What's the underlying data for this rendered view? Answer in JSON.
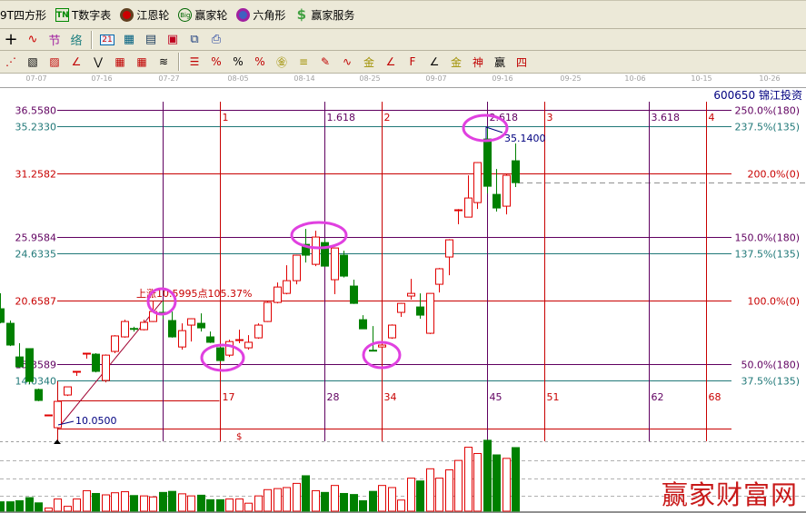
{
  "toolbar1": [
    {
      "label": "9T四方形",
      "icon": "none"
    },
    {
      "label": "T数字表",
      "icon": "tn-icon"
    },
    {
      "label": "江恩轮",
      "icon": "gann-wheel-icon"
    },
    {
      "label": "赢家轮",
      "icon": "big-wheel-icon"
    },
    {
      "label": "六角形",
      "icon": "hexagon-icon"
    },
    {
      "label": "赢家服务",
      "icon": "dollar-icon"
    }
  ],
  "toolbar2": [
    "crosshair-icon",
    "wave-icon",
    "jie-icon",
    "luo-icon",
    "calendar-icon",
    "calculator-icon",
    "notes-icon",
    "save-icon",
    "network-icon",
    "printer-icon"
  ],
  "toolbar2_calendar_text": "21",
  "toolbar3": [
    "fan-lines-icon",
    "gann-box-icon",
    "gann-square-icon",
    "angle-icon",
    "zigzag-icon",
    "grid-icon",
    "grid-bold-icon",
    "parallel-lines-icon",
    "fib-levels-icon",
    "percent-trend-icon",
    "percent-icon",
    "percent-lines-icon",
    "gold-circle-icon",
    "gold-lines-icon",
    "pencil-icon",
    "sine-wave-icon",
    "gold-icon",
    "angle-lines-icon",
    "f-angle-icon",
    "angle-lines-2-icon",
    "gold-angle-icon",
    "shen-angle-icon",
    "ying-angle-icon",
    "si-angle-icon"
  ],
  "dates": [
    "07-07",
    "07-16",
    "07-27",
    "08-05",
    "08-14",
    "08-25",
    "09-07",
    "09-16",
    "09-25",
    "10-06",
    "10-15",
    "10-26"
  ],
  "stock": "600650 锦江投资",
  "colors": {
    "red": "#c80000",
    "purple": "#600060",
    "teal": "#207878",
    "up": "#e00000",
    "down": "#008000",
    "ellipse": "#e040e0",
    "blue": "#000080"
  },
  "chart_data": {
    "type": "candlestick",
    "fib_price_levels": [
      {
        "price": "36.5580",
        "label": "250.0%(180)",
        "color": "purple"
      },
      {
        "price": "35.2330",
        "label": "237.5%(135)",
        "color": "teal"
      },
      {
        "price": "31.2582",
        "label": "200.0%(0)",
        "color": "red"
      },
      {
        "price": "25.9584",
        "label": "150.0%(180)",
        "color": "purple"
      },
      {
        "price": "24.6335",
        "label": "137.5%(135)",
        "color": "teal"
      },
      {
        "price": "20.6587",
        "label": "100.0%(0)",
        "color": "red"
      },
      {
        "price": "15.3589",
        "label": "50.0%(180)",
        "color": "purple"
      },
      {
        "price": "14.0340",
        "label": "37.5%(135)",
        "color": "teal"
      }
    ],
    "fib_time_lines": [
      {
        "bars": 11,
        "top": "",
        "bottom": "",
        "color": "purple"
      },
      {
        "bars": 17,
        "top": "1",
        "bottom": "17",
        "color": "red"
      },
      {
        "bars": 28,
        "top": "1.618",
        "bottom": "28",
        "color": "purple"
      },
      {
        "bars": 34,
        "top": "2",
        "bottom": "34",
        "color": "red"
      },
      {
        "bars": 45,
        "top": "2.618",
        "bottom": "45",
        "color": "purple"
      },
      {
        "bars": 51,
        "top": "3",
        "bottom": "51",
        "color": "red"
      },
      {
        "bars": 62,
        "top": "3.618",
        "bottom": "62",
        "color": "purple"
      },
      {
        "bars": 68,
        "top": "4",
        "bottom": "68",
        "color": "red"
      }
    ],
    "low_label": "10.0500",
    "high_label": "35.1400",
    "rise_label": "上涨10.5995点105.37%",
    "dollar_marker": "$",
    "low_index": 6,
    "swing_high_index": 17,
    "low_price": 10.05,
    "swing_high_price": 20.65,
    "last_price": 30.5,
    "candles": [
      [
        20.0,
        21.29,
        18.79,
        18.87
      ],
      [
        18.79,
        19.02,
        16.9,
        16.98
      ],
      [
        15.99,
        17.13,
        15.09,
        15.17
      ],
      [
        16.68,
        16.68,
        13.73,
        13.95
      ],
      [
        13.28,
        13.35,
        12.3,
        12.37
      ],
      [
        11.16,
        11.2,
        11.1,
        11.16
      ],
      [
        10.1,
        12.29,
        10.05,
        12.29
      ],
      [
        12.82,
        13.5,
        12.74,
        13.5
      ],
      [
        14.79,
        14.79,
        14.41,
        14.79
      ],
      [
        16.3,
        16.3,
        15.85,
        16.3
      ],
      [
        16.22,
        16.3,
        14.7,
        14.79
      ],
      [
        14.03,
        16.2,
        13.87,
        16.14
      ],
      [
        16.45,
        17.8,
        16.3,
        17.74
      ],
      [
        17.66,
        19.09,
        17.6,
        18.94
      ],
      [
        18.36,
        18.5,
        18.1,
        18.33
      ],
      [
        18.26,
        19.09,
        18.2,
        18.87
      ],
      [
        18.94,
        20.6,
        18.9,
        19.77
      ],
      [
        19.7,
        20.65,
        19.17,
        19.55
      ],
      [
        19.02,
        19.77,
        17.6,
        17.66
      ],
      [
        16.82,
        18.79,
        16.59,
        18.18
      ],
      [
        18.64,
        19.2,
        17.27,
        19.17
      ],
      [
        18.79,
        19.62,
        18.11,
        18.41
      ],
      [
        17.66,
        18.11,
        17.15,
        17.21
      ],
      [
        16.75,
        16.8,
        15.6,
        15.69
      ],
      [
        16.14,
        17.43,
        15.99,
        17.27
      ],
      [
        17.4,
        18.26,
        17.13,
        17.43
      ],
      [
        16.75,
        17.8,
        16.59,
        17.21
      ],
      [
        17.58,
        18.79,
        17.5,
        18.64
      ],
      [
        18.94,
        20.6,
        18.9,
        20.53
      ],
      [
        20.53,
        22.19,
        20.45,
        21.81
      ],
      [
        21.28,
        23.62,
        21.2,
        22.34
      ],
      [
        22.34,
        24.5,
        22.04,
        24.46
      ],
      [
        25.36,
        26.65,
        23.85,
        24.46
      ],
      [
        23.7,
        26.5,
        23.55,
        25.97
      ],
      [
        25.51,
        25.82,
        23.5,
        23.55
      ],
      [
        22.42,
        25.1,
        21.21,
        25.06
      ],
      [
        24.46,
        24.83,
        22.6,
        22.72
      ],
      [
        21.89,
        22.42,
        20.4,
        20.45
      ],
      [
        19.09,
        19.47,
        18.3,
        18.33
      ],
      [
        16.55,
        18.56,
        16.5,
        16.52
      ],
      [
        16.82,
        17.2,
        16.8,
        16.98
      ],
      [
        17.58,
        18.7,
        17.5,
        18.64
      ],
      [
        19.7,
        20.5,
        19.32,
        20.45
      ],
      [
        21.06,
        22.49,
        20.76,
        21.28
      ],
      [
        20.15,
        21.28,
        19.17,
        19.47
      ],
      [
        17.96,
        21.3,
        17.9,
        21.28
      ],
      [
        22.04,
        23.4,
        21.36,
        23.33
      ],
      [
        24.31,
        25.8,
        22.79,
        25.74
      ],
      [
        28.2,
        28.3,
        27.03,
        28.24
      ],
      [
        27.63,
        31.11,
        27.6,
        29.22
      ],
      [
        28.84,
        32.2,
        28.31,
        32.17
      ],
      [
        34.13,
        35.14,
        29.6,
        30.2
      ],
      [
        29.52,
        31.64,
        28.09,
        28.39
      ],
      [
        28.54,
        31.2,
        27.86,
        31.11
      ],
      [
        32.32,
        33.76,
        30.13,
        30.5
      ]
    ],
    "candle_fields": [
      "open",
      "high",
      "low",
      "close"
    ],
    "volume_relative": [
      27,
      27,
      30,
      39,
      24,
      9,
      35,
      14,
      35,
      59,
      51,
      47,
      53,
      56,
      45,
      44,
      41,
      54,
      57,
      50,
      44,
      46,
      33,
      33,
      35,
      35,
      23,
      44,
      62,
      65,
      68,
      80,
      102,
      59,
      54,
      74,
      51,
      48,
      30,
      57,
      74,
      68,
      32,
      95,
      87,
      122,
      95,
      119,
      146,
      184,
      166,
      204,
      162,
      152,
      183
    ]
  },
  "watermark": "赢家财富网"
}
